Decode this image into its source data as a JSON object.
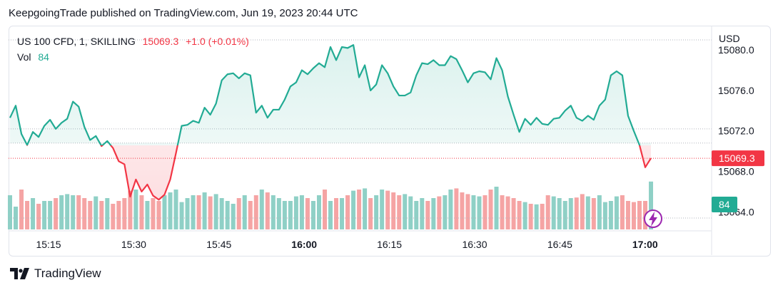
{
  "header": {
    "published": "KeepgoingTrade published on TradingView.com, Jun 19, 2023 20:44 UTC"
  },
  "legend": {
    "symbol": "US 100 CFD, 1, SKILLING",
    "last": "15069.3",
    "change": "+1.0 (+0.01%)",
    "vol_label": "Vol",
    "vol_value": "84"
  },
  "axis": {
    "currency": "USD"
  },
  "footer": {
    "brand": "TradingView"
  },
  "colors": {
    "up": "#22ab94",
    "down": "#f23645",
    "up_vol": "#8fd0c6",
    "down_vol": "#f5a4a4"
  },
  "chart_data": {
    "type": "area",
    "title": "US 100 CFD, 1, SKILLING",
    "ylim": [
      15062.4,
      15081.0
    ],
    "y_ticks": [
      15064.0,
      15068.0,
      15072.0,
      15076.0,
      15080.0
    ],
    "y_tick_labels": [
      "15064.0",
      "15068.0",
      "15072.0",
      "15076.0",
      "15080.0"
    ],
    "x_range_min": [
      5,
      105
    ],
    "x_ticks": [
      15,
      30,
      45,
      60,
      75,
      90,
      105
    ],
    "x_tick_labels": [
      "15:15",
      "15:30",
      "15:45",
      "16:00",
      "16:15",
      "16:30",
      "16:45",
      "17:00"
    ],
    "x_tick_positions": [
      15,
      30,
      45,
      60,
      75,
      90,
      105,
      120
    ],
    "baseline": 15070.8,
    "last_price": 15069.3,
    "last_price_label": "15069.3",
    "last_volume": 84,
    "last_volume_label": "84",
    "price": [
      15073.3,
      15074.5,
      15071.7,
      15070.6,
      15071.9,
      15071.4,
      15072.5,
      15073.1,
      15072.2,
      15072.8,
      15073.2,
      15074.9,
      15074.4,
      15072.4,
      15071.1,
      15071.5,
      15070.5,
      15071.0,
      15070.3,
      15069.0,
      15068.7,
      15065.5,
      15067.2,
      15066.0,
      15066.7,
      15065.6,
      15065.2,
      15065.7,
      15067.2,
      15069.8,
      15072.5,
      15072.6,
      15073.0,
      15072.8,
      15074.3,
      15073.6,
      15074.7,
      15077.0,
      15077.6,
      15077.7,
      15077.2,
      15077.7,
      15077.5,
      15073.8,
      15074.5,
      15073.3,
      15074.1,
      15074.1,
      15075.1,
      15076.4,
      15076.8,
      15078.0,
      15077.6,
      15078.2,
      15078.7,
      15078.3,
      15080.3,
      15079.0,
      15080.3,
      15080.2,
      15080.5,
      15077.3,
      15078.5,
      15076.0,
      15076.6,
      15078.5,
      15077.7,
      15076.4,
      15075.5,
      15075.5,
      15075.8,
      15077.5,
      15078.7,
      15078.6,
      15079.0,
      15078.5,
      15078.5,
      15079.4,
      15079.1,
      15078.0,
      15076.8,
      15077.7,
      15077.9,
      15077.8,
      15077.1,
      15079.2,
      15078.0,
      15075.4,
      15073.6,
      15071.9,
      15073.2,
      15072.6,
      15073.3,
      15072.7,
      15072.6,
      15073.2,
      15073.3,
      15074.0,
      15074.5,
      15073.3,
      15073.0,
      15073.5,
      15073.1,
      15074.5,
      15075.1,
      15077.5,
      15077.9,
      15077.5,
      15073.5,
      15072.0,
      15070.6,
      15068.4,
      15069.3
    ],
    "volume": [
      60,
      40,
      70,
      50,
      55,
      45,
      50,
      50,
      55,
      60,
      62,
      60,
      60,
      55,
      50,
      58,
      50,
      55,
      45,
      50,
      55,
      68,
      70,
      60,
      50,
      55,
      50,
      60,
      65,
      70,
      48,
      55,
      60,
      60,
      65,
      58,
      62,
      55,
      50,
      45,
      55,
      60,
      50,
      60,
      70,
      65,
      60,
      55,
      50,
      50,
      58,
      60,
      55,
      50,
      60,
      70,
      50,
      55,
      55,
      60,
      68,
      70,
      72,
      55,
      60,
      70,
      68,
      65,
      60,
      62,
      58,
      50,
      55,
      50,
      55,
      58,
      60,
      70,
      72,
      65,
      62,
      60,
      58,
      60,
      70,
      75,
      60,
      58,
      55,
      50,
      48,
      45,
      44,
      45,
      60,
      58,
      55,
      50,
      55,
      56,
      62,
      58,
      55,
      60,
      48,
      50,
      58,
      60,
      50,
      48,
      50,
      50,
      84
    ]
  }
}
